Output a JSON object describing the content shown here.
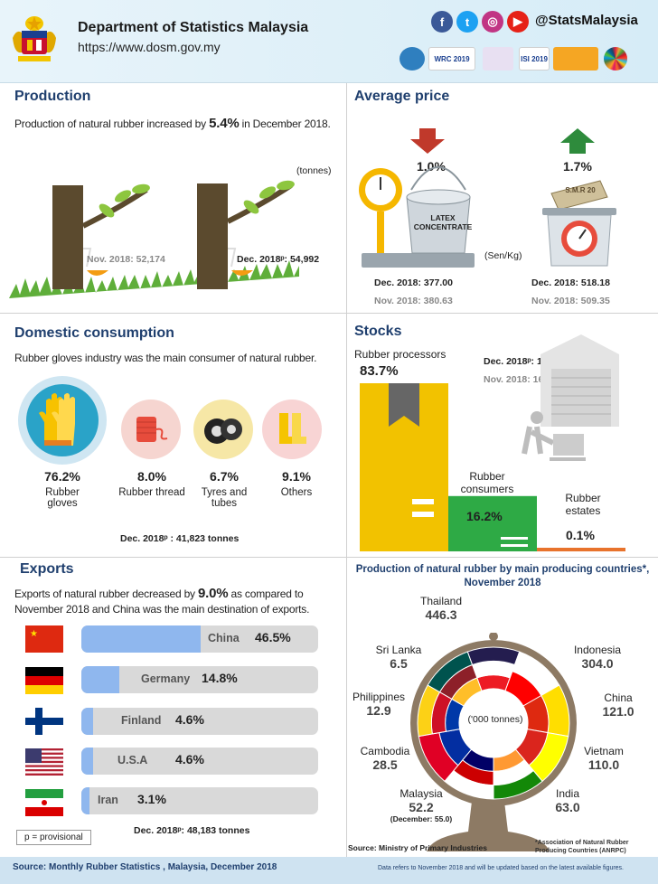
{
  "header": {
    "title": "Department of Statistics Malaysia",
    "url": "https://www.dosm.gov.my",
    "handle": "@StatsMalaysia",
    "logos": [
      "WRC 2019",
      "ISI 2019"
    ]
  },
  "production": {
    "title": "Production",
    "desc_pre": "Production of natural rubber increased by ",
    "desc_pct": "5.4%",
    "desc_post": " in December 2018.",
    "unit": "(tonnes)",
    "nov_label": "Nov. 2018: 52,174",
    "dec_label": "Dec. 2018ᵖ: 54,992"
  },
  "avg_price": {
    "title": "Average price",
    "latex_change": "1.0%",
    "latex_label": "LATEX CONCENTRATE",
    "smr_change": "1.7%",
    "smr_label": "S.M.R 20",
    "unit": "(Sen/Kg)",
    "latex_dec": "Dec. 2018:  377.00",
    "latex_nov": "Nov. 2018:  380.63",
    "smr_dec": "Dec. 2018:  518.18",
    "smr_nov": "Nov. 2018:  509.35"
  },
  "domestic": {
    "title": "Domestic consumption",
    "desc": "Rubber gloves industry was the main consumer of natural rubber.",
    "items": [
      {
        "pct": "76.2%",
        "label": "Rubber gloves"
      },
      {
        "pct": "8.0%",
        "label": "Rubber thread"
      },
      {
        "pct": "6.7%",
        "label": "Tyres and tubes"
      },
      {
        "pct": "9.1%",
        "label": "Others"
      }
    ],
    "total": "Dec. 2018ᵖ : 41,823  tonnes"
  },
  "stocks": {
    "title": "Stocks",
    "dec": "Dec. 2018ᵖ: 173,848  tonnes",
    "nov": "Nov. 2018:  169,939  tonnes",
    "items": [
      {
        "label": "Rubber processors",
        "pct": "83.7%",
        "value": 83.7
      },
      {
        "label": "Rubber consumers",
        "pct": "16.2%",
        "value": 16.2
      },
      {
        "label": "Rubber estates",
        "pct": "0.1%",
        "value": 0.1
      }
    ]
  },
  "exports": {
    "title": "Exports",
    "desc_pre": "Exports of natural rubber decreased by ",
    "desc_pct": "9.0%",
    "desc_post": " as compared to November 2018 and China was the main destination of exports.",
    "items": [
      {
        "country": "China",
        "pct": "46.5%",
        "value": 46.5
      },
      {
        "country": "Germany",
        "pct": "14.8%",
        "value": 14.8
      },
      {
        "country": "Finland",
        "pct": "4.6%",
        "value": 4.6
      },
      {
        "country": "U.S.A",
        "pct": "4.6%",
        "value": 4.6
      },
      {
        "country": "Iran",
        "pct": "3.1%",
        "value": 3.1
      }
    ],
    "total": "Dec. 2018ᵖ: 48,183 tonnes",
    "provisional": "p =  provisional"
  },
  "countries": {
    "title": "Production of natural rubber by main producing countries*, November 2018",
    "unit": "('000 tonnes)",
    "items": [
      {
        "name": "Thailand",
        "value": "446.3"
      },
      {
        "name": "Indonesia",
        "value": "304.0"
      },
      {
        "name": "China",
        "value": "121.0"
      },
      {
        "name": "Vietnam",
        "value": "110.0"
      },
      {
        "name": "India",
        "value": "63.0"
      },
      {
        "name": "Malaysia",
        "value": "52.2"
      },
      {
        "name": "Cambodia",
        "value": "28.5"
      },
      {
        "name": "Philippines",
        "value": "12.9"
      },
      {
        "name": "Sri Lanka",
        "value": "6.5"
      }
    ],
    "malaysia_note": "(December: 55.0)",
    "source": "Source: Ministry of Primary Industries",
    "anrpc_note": "*Association  of Natural  Rubber Producing Countries (ANRPC)"
  },
  "footer": {
    "source": "Source:  Monthly Rubber Statistics , Malaysia, December 2018",
    "note": "Data refers to November 2018 and will be updated based on the latest available figures."
  }
}
